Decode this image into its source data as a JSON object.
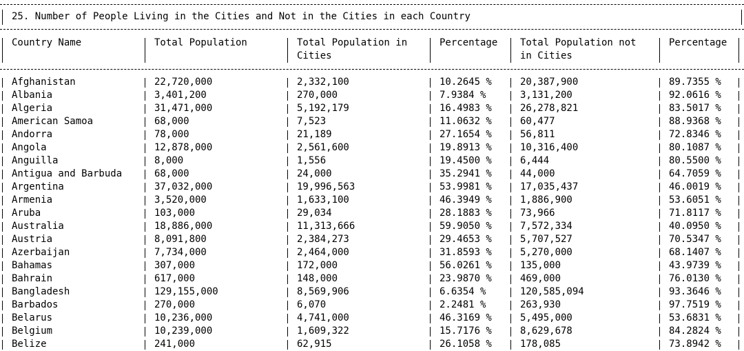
{
  "title": "25. Number of People Living in the Cities and Not in the Cities in each Country",
  "columns": [
    {
      "line1": "Country Name",
      "line2": ""
    },
    {
      "line1": "Total Population",
      "line2": ""
    },
    {
      "line1": "Total Population in",
      "line2": "Cities"
    },
    {
      "line1": "Percentage",
      "line2": ""
    },
    {
      "line1": "Total Population not",
      "line2": "in Cities"
    },
    {
      "line1": "Percentage",
      "line2": ""
    }
  ],
  "rows": [
    [
      "Afghanistan",
      "22,720,000",
      "2,332,100",
      "10.2645 %",
      "20,387,900",
      "89.7355 %"
    ],
    [
      "Albania",
      "3,401,200",
      "270,000",
      "7.9384 %",
      "3,131,200",
      "92.0616 %"
    ],
    [
      "Algeria",
      "31,471,000",
      "5,192,179",
      "16.4983 %",
      "26,278,821",
      "83.5017 %"
    ],
    [
      "American Samoa",
      "68,000",
      "7,523",
      "11.0632 %",
      "60,477",
      "88.9368 %"
    ],
    [
      "Andorra",
      "78,000",
      "21,189",
      "27.1654 %",
      "56,811",
      "72.8346 %"
    ],
    [
      "Angola",
      "12,878,000",
      "2,561,600",
      "19.8913 %",
      "10,316,400",
      "80.1087 %"
    ],
    [
      "Anguilla",
      "8,000",
      "1,556",
      "19.4500 %",
      "6,444",
      "80.5500 %"
    ],
    [
      "Antigua and Barbuda",
      "68,000",
      "24,000",
      "35.2941 %",
      "44,000",
      "64.7059 %"
    ],
    [
      "Argentina",
      "37,032,000",
      "19,996,563",
      "53.9981 %",
      "17,035,437",
      "46.0019 %"
    ],
    [
      "Armenia",
      "3,520,000",
      "1,633,100",
      "46.3949 %",
      "1,886,900",
      "53.6051 %"
    ],
    [
      "Aruba",
      "103,000",
      "29,034",
      "28.1883 %",
      "73,966",
      "71.8117 %"
    ],
    [
      "Australia",
      "18,886,000",
      "11,313,666",
      "59.9050 %",
      "7,572,334",
      "40.0950 %"
    ],
    [
      "Austria",
      "8,091,800",
      "2,384,273",
      "29.4653 %",
      "5,707,527",
      "70.5347 %"
    ],
    [
      "Azerbaijan",
      "7,734,000",
      "2,464,000",
      "31.8593 %",
      "5,270,000",
      "68.1407 %"
    ],
    [
      "Bahamas",
      "307,000",
      "172,000",
      "56.0261 %",
      "135,000",
      "43.9739 %"
    ],
    [
      "Bahrain",
      "617,000",
      "148,000",
      "23.9870 %",
      "469,000",
      "76.0130 %"
    ],
    [
      "Bangladesh",
      "129,155,000",
      "8,569,906",
      "6.6354 %",
      "120,585,094",
      "93.3646 %"
    ],
    [
      "Barbados",
      "270,000",
      "6,070",
      "2.2481 %",
      "263,930",
      "97.7519 %"
    ],
    [
      "Belarus",
      "10,236,000",
      "4,741,000",
      "46.3169 %",
      "5,495,000",
      "53.6831 %"
    ],
    [
      "Belgium",
      "10,239,000",
      "1,609,322",
      "15.7176 %",
      "8,629,678",
      "84.2824 %"
    ],
    [
      "Belize",
      "241,000",
      "62,915",
      "26.1058 %",
      "178,085",
      "73.8942 %"
    ]
  ]
}
